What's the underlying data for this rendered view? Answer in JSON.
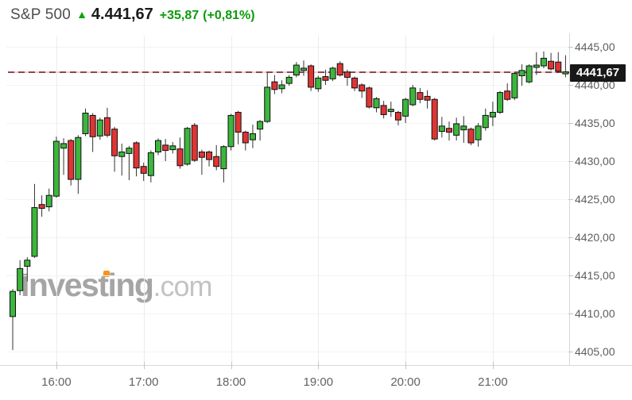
{
  "header": {
    "symbol": "S&P 500",
    "arrow": "▲",
    "price": "4.441,67",
    "change": "+35,87",
    "change_pct": "(+0,81%)"
  },
  "watermark": {
    "brand": "Investing",
    "suffix": ".com"
  },
  "colors": {
    "up": "#3cb63c",
    "down": "#e03434",
    "candle_border": "#0f0f0f",
    "wick": "#333333",
    "dash_line": "#8a4a52",
    "dash_underlay": "#f4bac2",
    "price_tag_bg": "#181818",
    "accent_green": "#0c9c0c",
    "watermark_orange": "#f7941e",
    "grid_v": "#ececec",
    "grid_h": "#f3f3f3",
    "axis_line": "#d8d8d8",
    "axis_text_y": "#5e5e5e",
    "axis_text_x": "#636363",
    "tick": "#c4c4c4"
  },
  "chart_data": {
    "type": "candlestick",
    "title": "S&P 500",
    "last_price": 4441.67,
    "last_price_label": "4441,67",
    "ylim": [
      4403.2,
      4446.5
    ],
    "grid": true,
    "y_axis": {
      "values": [
        4445,
        4440,
        4435,
        4430,
        4425,
        4420,
        4415,
        4410,
        4405
      ],
      "labels": [
        "4445,00",
        "4440,00",
        "4435,00",
        "4430,00",
        "4425,00",
        "4420,00",
        "4415,00",
        "4410,00",
        "4405,00"
      ]
    },
    "x_axis": {
      "labels": [
        "16:00",
        "17:00",
        "18:00",
        "19:00",
        "20:00",
        "21:00"
      ]
    },
    "candle_fields": [
      "time",
      "open",
      "high",
      "low",
      "close"
    ],
    "candles": [
      [
        "15:30",
        4409.6,
        4413.2,
        4405.2,
        4412.9
      ],
      [
        "15:35",
        4413.0,
        4417.0,
        4412.4,
        4415.9
      ],
      [
        "15:40",
        4416.2,
        4417.4,
        4414.2,
        4417.0
      ],
      [
        "15:45",
        4417.5,
        4427.0,
        4417.3,
        4423.9
      ],
      [
        "15:50",
        4424.3,
        4425.5,
        4422.7,
        4423.8
      ],
      [
        "15:55",
        4424.0,
        4426.4,
        4423.4,
        4425.5
      ],
      [
        "16:00",
        4425.4,
        4433.2,
        4425.2,
        4432.6
      ],
      [
        "16:05",
        4431.7,
        4433.0,
        4428.2,
        4432.3
      ],
      [
        "16:10",
        4432.7,
        4432.9,
        4426.8,
        4427.6
      ],
      [
        "16:15",
        4427.6,
        4433.4,
        4425.7,
        4433.1
      ],
      [
        "16:20",
        4433.6,
        4436.9,
        4433.3,
        4436.3
      ],
      [
        "16:25",
        4436.0,
        4436.3,
        4431.2,
        4433.2
      ],
      [
        "16:30",
        4433.3,
        4435.7,
        4432.8,
        4435.4
      ],
      [
        "16:35",
        4435.7,
        4437.0,
        4433.1,
        4433.4
      ],
      [
        "16:40",
        4434.2,
        4434.5,
        4428.6,
        4430.7
      ],
      [
        "16:45",
        4430.6,
        4432.3,
        4428.1,
        4431.2
      ],
      [
        "16:50",
        4431.0,
        4432.0,
        4427.5,
        4431.7
      ],
      [
        "16:55",
        4432.4,
        4432.6,
        4428.0,
        4429.1
      ],
      [
        "17:00",
        4429.3,
        4429.8,
        4427.4,
        4428.4
      ],
      [
        "17:05",
        4428.1,
        4431.4,
        4427.2,
        4431.1
      ],
      [
        "17:10",
        4431.2,
        4433.0,
        4430.8,
        4432.7
      ],
      [
        "17:15",
        4432.1,
        4432.9,
        4430.0,
        4431.4
      ],
      [
        "17:20",
        4431.5,
        4432.5,
        4431.0,
        4432.0
      ],
      [
        "17:25",
        4431.6,
        4433.1,
        4429.0,
        4429.4
      ],
      [
        "17:30",
        4429.6,
        4434.5,
        4429.4,
        4434.3
      ],
      [
        "17:35",
        4434.7,
        4435.0,
        4429.9,
        4430.1
      ],
      [
        "17:40",
        4431.2,
        4431.5,
        4428.2,
        4430.5
      ],
      [
        "17:45",
        4431.2,
        4431.4,
        4429.3,
        4430.2
      ],
      [
        "17:50",
        4430.6,
        4432.1,
        4428.8,
        4429.3
      ],
      [
        "17:55",
        4429.0,
        4432.1,
        4427.2,
        4431.9
      ],
      [
        "18:00",
        4431.9,
        4436.2,
        4431.4,
        4436.0
      ],
      [
        "18:05",
        4436.4,
        4436.6,
        4432.2,
        4433.8
      ],
      [
        "18:10",
        4433.8,
        4434.0,
        4431.4,
        4432.4
      ],
      [
        "18:15",
        4432.8,
        4434.8,
        4431.7,
        4433.6
      ],
      [
        "18:20",
        4434.2,
        4435.4,
        4432.7,
        4435.2
      ],
      [
        "18:25",
        4435.2,
        4441.6,
        4435.0,
        4439.7
      ],
      [
        "18:30",
        4440.4,
        4441.3,
        4438.8,
        4439.4
      ],
      [
        "18:35",
        4439.5,
        4440.6,
        4438.9,
        4440.0
      ],
      [
        "18:40",
        4440.2,
        4441.3,
        4439.9,
        4441.0
      ],
      [
        "18:45",
        4441.3,
        4443.0,
        4441.0,
        4442.6
      ],
      [
        "18:50",
        4441.9,
        4443.2,
        4441.2,
        4442.2
      ],
      [
        "18:55",
        4442.5,
        4442.7,
        4439.2,
        4439.7
      ],
      [
        "19:00",
        4439.5,
        4441.2,
        4439.1,
        4440.9
      ],
      [
        "19:05",
        4441.1,
        4442.0,
        4440.0,
        4440.6
      ],
      [
        "19:10",
        4440.8,
        4442.4,
        4440.5,
        4442.2
      ],
      [
        "19:15",
        4442.8,
        4443.1,
        4441.1,
        4441.3
      ],
      [
        "19:20",
        4441.7,
        4442.0,
        4439.9,
        4441.0
      ],
      [
        "19:25",
        4440.9,
        4441.1,
        4439.2,
        4439.6
      ],
      [
        "19:30",
        4440.0,
        4440.2,
        4438.3,
        4439.2
      ],
      [
        "19:35",
        4439.6,
        4439.8,
        4436.9,
        4437.1
      ],
      [
        "19:40",
        4437.0,
        4438.4,
        4436.4,
        4438.2
      ],
      [
        "19:45",
        4437.3,
        4437.9,
        4435.6,
        4436.1
      ],
      [
        "19:50",
        4436.5,
        4437.8,
        4435.8,
        4436.8
      ],
      [
        "19:55",
        4436.4,
        4436.6,
        4434.7,
        4435.4
      ],
      [
        "20:00",
        4435.9,
        4438.3,
        4435.0,
        4438.1
      ],
      [
        "20:05",
        4437.4,
        4440.0,
        4437.2,
        4439.6
      ],
      [
        "20:10",
        4439.0,
        4439.6,
        4437.6,
        4438.1
      ],
      [
        "20:15",
        4438.5,
        4439.3,
        4436.9,
        4438.0
      ],
      [
        "20:20",
        4438.1,
        4438.3,
        4432.7,
        4432.9
      ],
      [
        "20:25",
        4433.9,
        4435.8,
        4433.1,
        4434.6
      ],
      [
        "20:30",
        4434.3,
        4435.2,
        4432.7,
        4433.8
      ],
      [
        "20:35",
        4433.4,
        4435.7,
        4432.7,
        4434.9
      ],
      [
        "20:40",
        4434.1,
        4435.9,
        4432.4,
        4434.6
      ],
      [
        "20:45",
        4434.2,
        4434.4,
        4432.1,
        4432.4
      ],
      [
        "20:50",
        4432.8,
        4435.0,
        4431.9,
        4434.6
      ],
      [
        "20:55",
        4434.4,
        4436.9,
        4434.0,
        4436.0
      ],
      [
        "21:00",
        4435.8,
        4437.8,
        4434.6,
        4436.4
      ],
      [
        "21:05",
        4436.4,
        4439.2,
        4436.2,
        4439.0
      ],
      [
        "21:10",
        4439.2,
        4440.2,
        4437.9,
        4438.1
      ],
      [
        "21:15",
        4438.3,
        4441.7,
        4438.0,
        4441.5
      ],
      [
        "21:20",
        4441.2,
        4442.7,
        4439.9,
        4441.9
      ],
      [
        "21:25",
        4440.4,
        4442.7,
        4440.2,
        4442.5
      ],
      [
        "21:30",
        4442.3,
        4444.3,
        4441.3,
        4442.6
      ],
      [
        "21:35",
        4442.5,
        4444.4,
        4442.2,
        4443.5
      ],
      [
        "21:40",
        4443.1,
        4444.2,
        4441.9,
        4442.1
      ],
      [
        "21:45",
        4443.0,
        4444.3,
        4441.6,
        4441.8
      ],
      [
        "21:50",
        4441.5,
        4443.9,
        4441.0,
        4441.67
      ]
    ]
  }
}
